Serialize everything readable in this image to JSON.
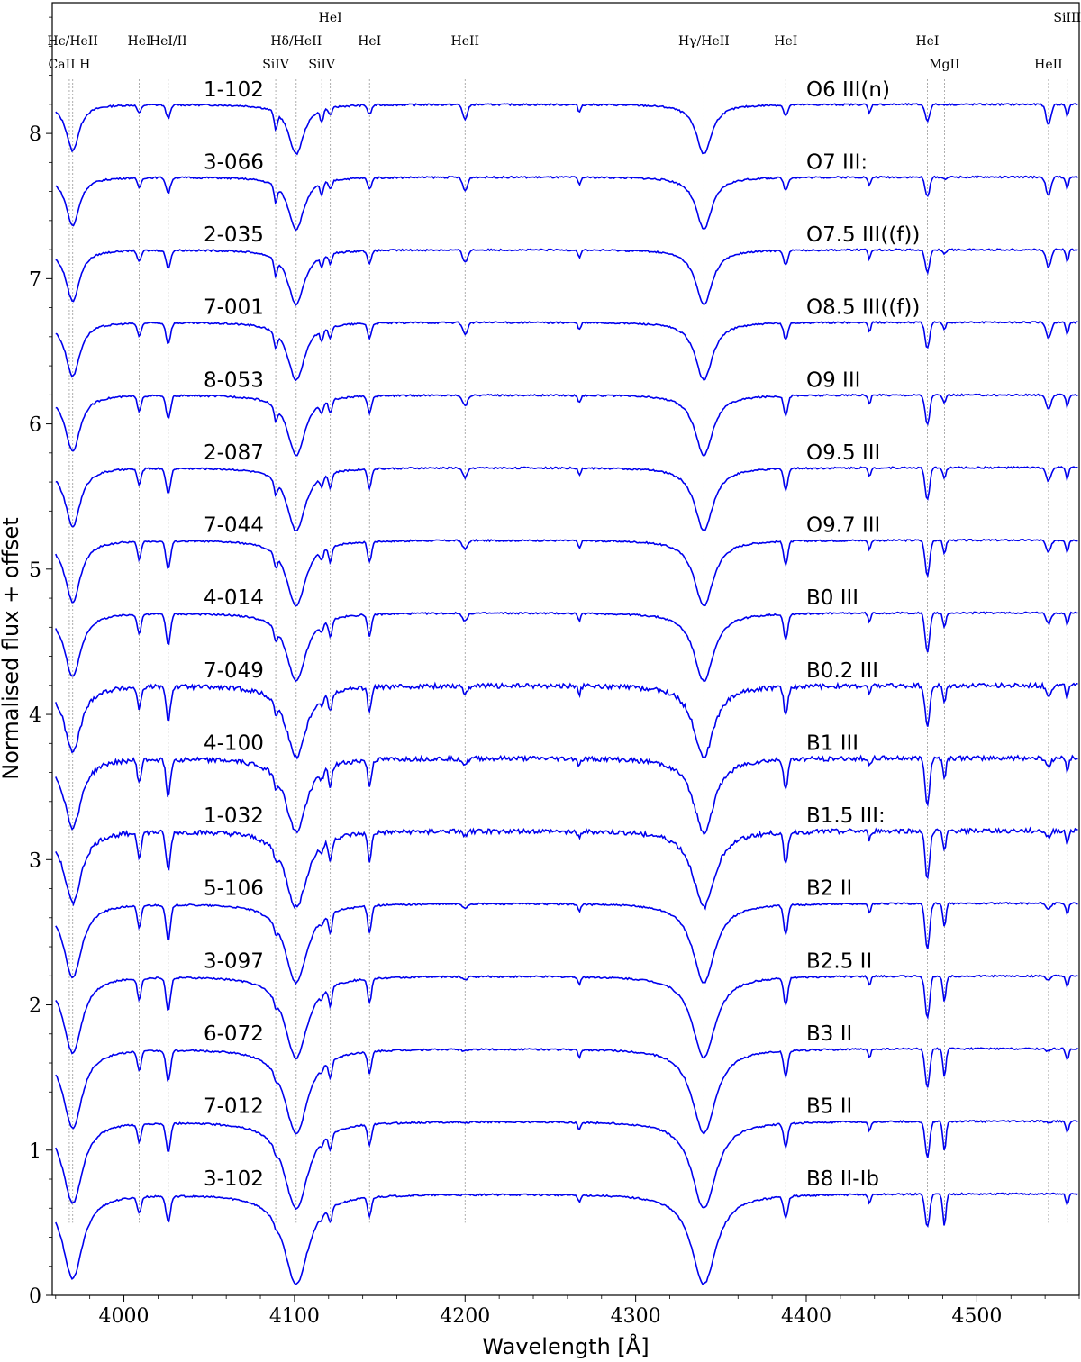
{
  "chart_data": {
    "type": "line",
    "xlabel": "Wavelength [Å]",
    "ylabel": "Normalised flux + offset",
    "xlim": [
      3958,
      4560
    ],
    "ylim": [
      0,
      8.9
    ],
    "xticks": [
      4000,
      4100,
      4200,
      4300,
      4400,
      4500
    ],
    "yticks": [
      0,
      1,
      2,
      3,
      4,
      5,
      6,
      7,
      8
    ],
    "grid": false,
    "line_color": "#0000ee",
    "marker_color": "#9a9a9a",
    "line_markers": [
      {
        "label": "Hϵ/HeII",
        "x": 3970,
        "row": 1
      },
      {
        "label": "CaII H",
        "x": 3968,
        "row": 2
      },
      {
        "label": "HeI",
        "x": 4009,
        "row": 1
      },
      {
        "label": "HeI/II",
        "x": 4026,
        "row": 1
      },
      {
        "label": "SiIV",
        "x": 4089,
        "row": 2
      },
      {
        "label": "Hδ/HeII",
        "x": 4101,
        "row": 1
      },
      {
        "label": "HeI",
        "x": 4121,
        "row": 0
      },
      {
        "label": "SiIV",
        "x": 4116,
        "row": 2
      },
      {
        "label": "HeI",
        "x": 4144,
        "row": 1
      },
      {
        "label": "HeII",
        "x": 4200,
        "row": 1
      },
      {
        "label": "Hγ/HeII",
        "x": 4340,
        "row": 1
      },
      {
        "label": "HeI",
        "x": 4388,
        "row": 1
      },
      {
        "label": "HeI",
        "x": 4471,
        "row": 1
      },
      {
        "label": "MgII",
        "x": 4481,
        "row": 2
      },
      {
        "label": "HeII",
        "x": 4542,
        "row": 2
      },
      {
        "label": "SiIII",
        "x": 4553,
        "row": 0
      }
    ],
    "series": [
      {
        "name": "1-102",
        "sptype": "O6 III(n)",
        "offset": 8.2
      },
      {
        "name": "3-066",
        "sptype": "O7 III:",
        "offset": 7.7
      },
      {
        "name": "2-035",
        "sptype": "O7.5 III((f))",
        "offset": 7.2
      },
      {
        "name": "7-001",
        "sptype": "O8.5 III((f))",
        "offset": 6.7
      },
      {
        "name": "8-053",
        "sptype": "O9 III",
        "offset": 6.2
      },
      {
        "name": "2-087",
        "sptype": "O9.5 III",
        "offset": 5.7
      },
      {
        "name": "7-044",
        "sptype": "O9.7 III",
        "offset": 5.2
      },
      {
        "name": "4-014",
        "sptype": "B0 III",
        "offset": 4.7
      },
      {
        "name": "7-049",
        "sptype": "B0.2 III",
        "offset": 4.2
      },
      {
        "name": "4-100",
        "sptype": "B1 III",
        "offset": 3.7
      },
      {
        "name": "1-032",
        "sptype": "B1.5 III:",
        "offset": 3.2
      },
      {
        "name": "5-106",
        "sptype": "B2 II",
        "offset": 2.7
      },
      {
        "name": "3-097",
        "sptype": "B2.5 II",
        "offset": 2.2
      },
      {
        "name": "6-072",
        "sptype": "B3 II",
        "offset": 1.7
      },
      {
        "name": "7-012",
        "sptype": "B5 II",
        "offset": 1.2
      },
      {
        "name": "3-102",
        "sptype": "B8 II-Ib",
        "offset": 0.7
      }
    ]
  }
}
